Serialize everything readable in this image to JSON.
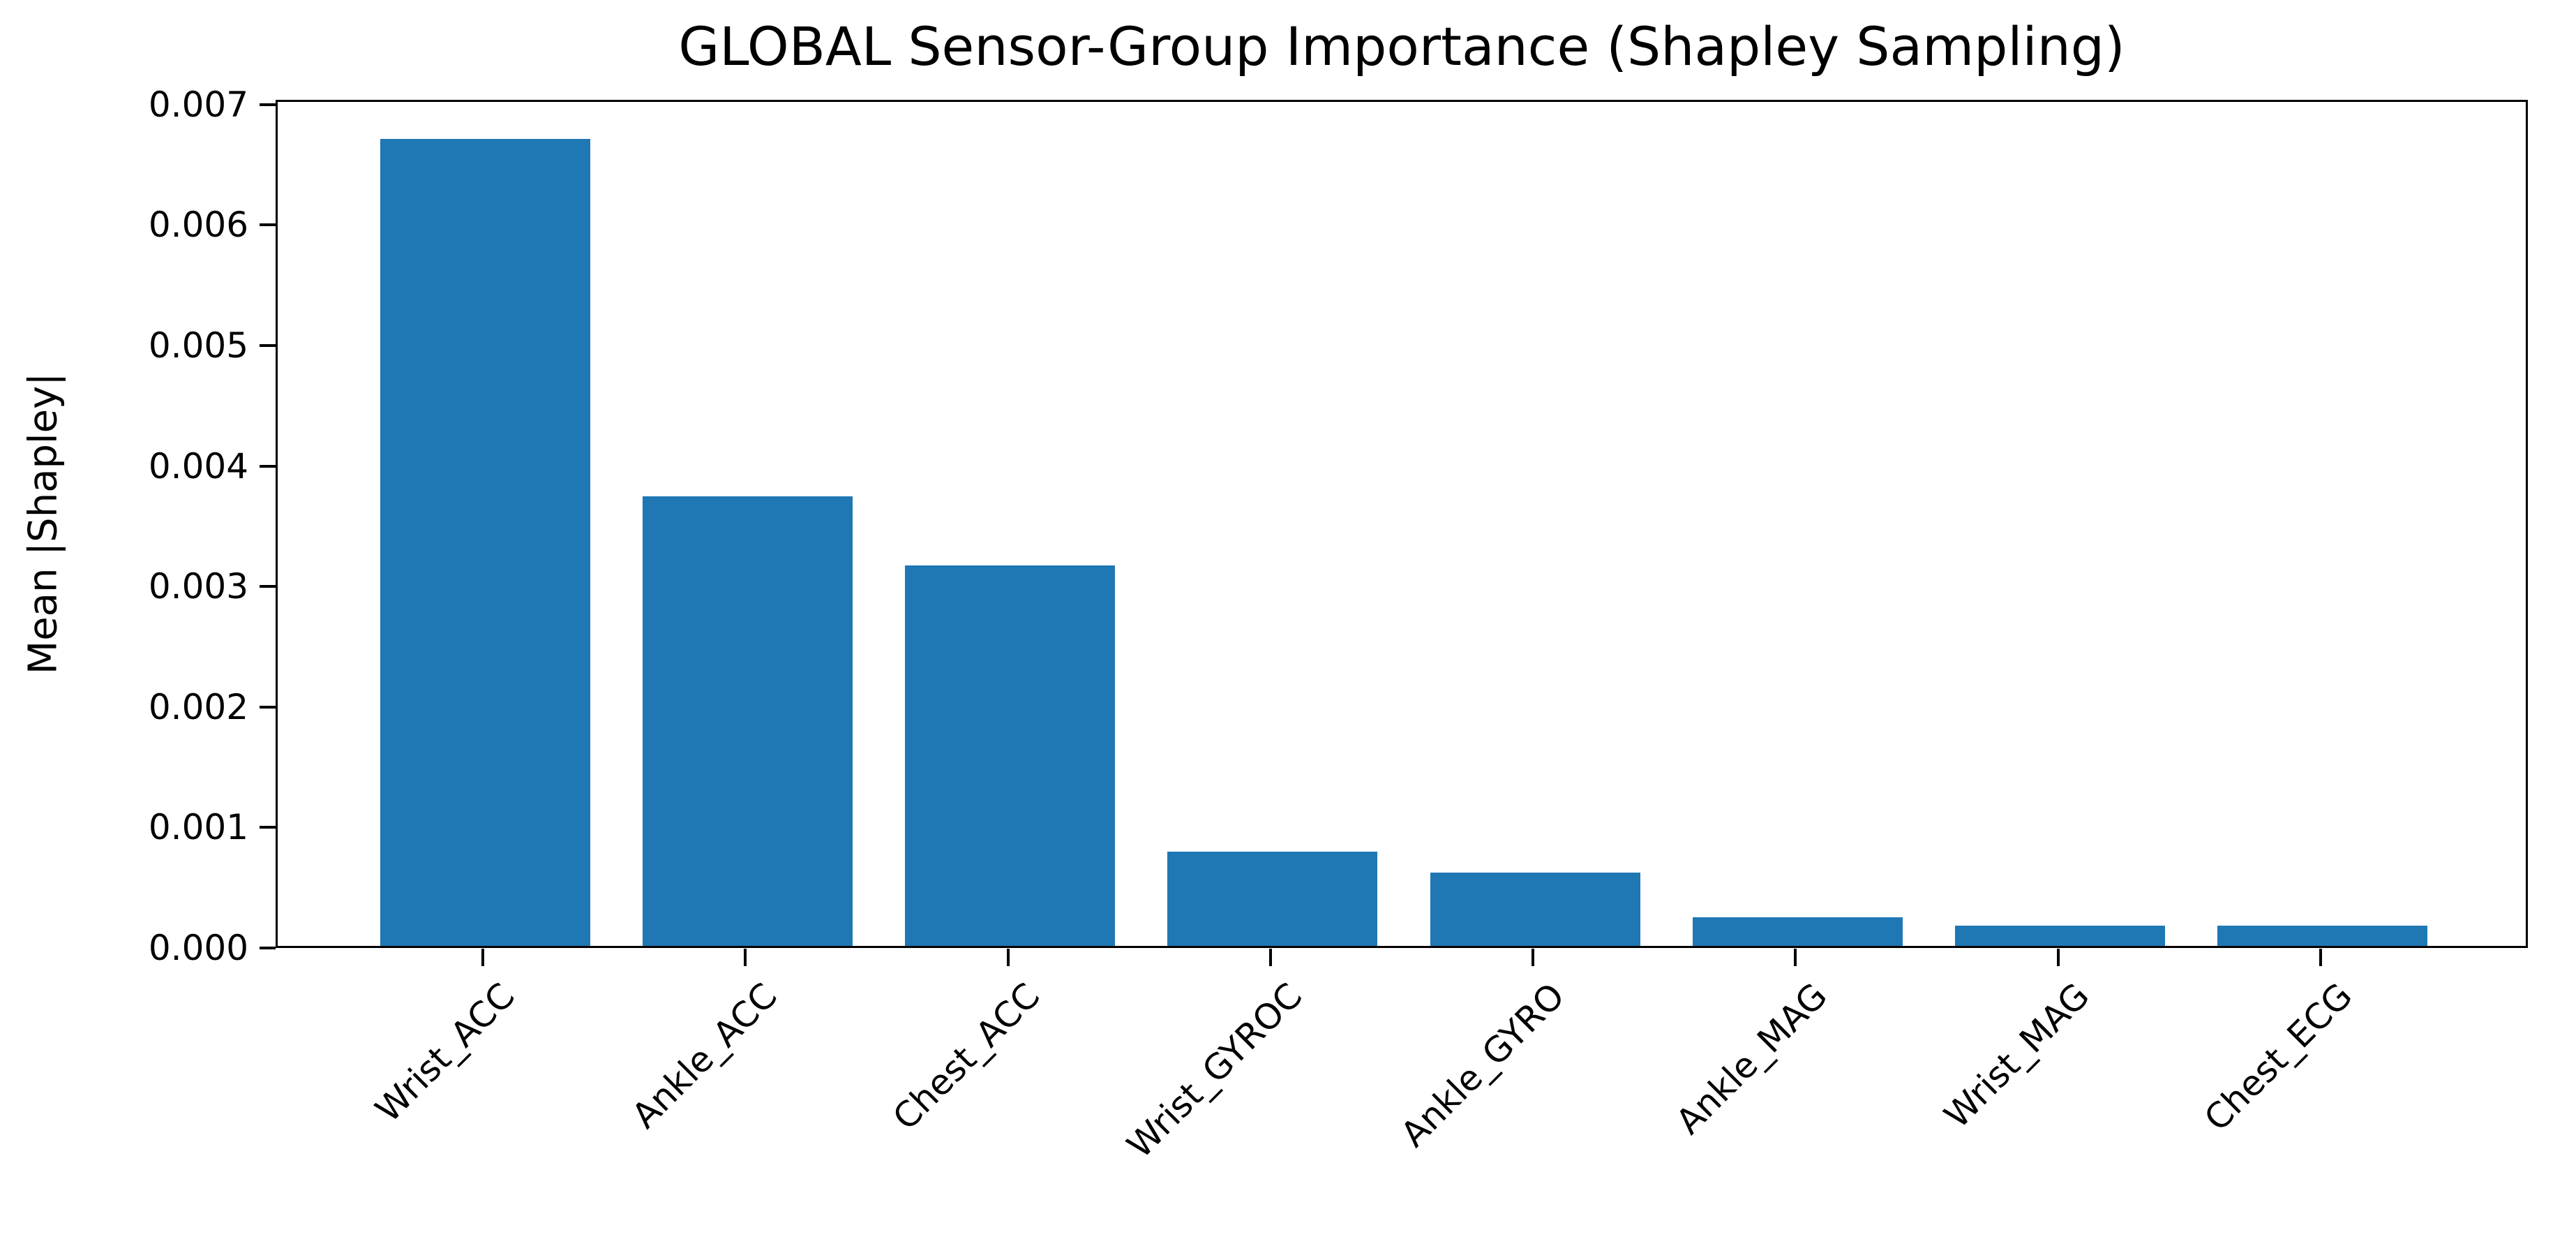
{
  "figure": {
    "background": "#ffffff",
    "axes_edge_color": "#000000"
  },
  "chart_data": {
    "type": "bar",
    "title": "GLOBAL Sensor-Group Importance (Shapley Sampling)",
    "xlabel": "",
    "ylabel": "Mean |Shapley|",
    "categories": [
      "Wrist_ACC",
      "Ankle_ACC",
      "Chest_ACC",
      "Wrist_GYROC",
      "Ankle_GYRO",
      "Ankle_MAG",
      "Wrist_MAG",
      "Chest_ECG"
    ],
    "values": [
      0.0067,
      0.00373,
      0.00316,
      0.00078,
      0.00061,
      0.00024,
      0.00017,
      0.00017
    ],
    "bar_color": "#1f77b4",
    "ylim": [
      0,
      0.00704
    ],
    "yticks": [
      0.0,
      0.001,
      0.002,
      0.003,
      0.004,
      0.005,
      0.006,
      0.007
    ],
    "ytick_labels": [
      "0.000",
      "0.001",
      "0.002",
      "0.003",
      "0.004",
      "0.005",
      "0.006",
      "0.007"
    ],
    "xtick_rotation": 45,
    "grid": false,
    "legend_position": "none"
  }
}
